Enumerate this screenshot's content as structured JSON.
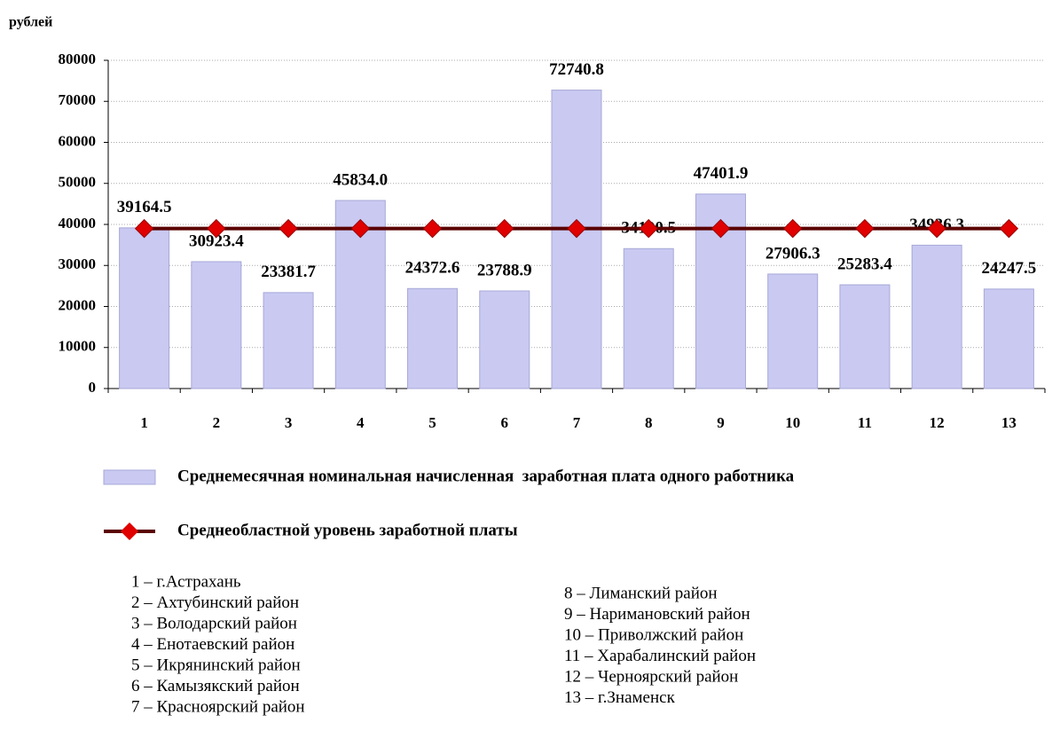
{
  "chart_data": {
    "type": "bar",
    "y_axis_label": "рублей",
    "categories": [
      "1",
      "2",
      "3",
      "4",
      "5",
      "6",
      "7",
      "8",
      "9",
      "10",
      "11",
      "12",
      "13"
    ],
    "series": [
      {
        "name": "Среднемесячная номинальная начисленная  заработная плата одного работника",
        "type": "bar",
        "color": "#c9c9f2",
        "values": [
          39164.5,
          30923.4,
          23381.7,
          45834.0,
          24372.6,
          23788.9,
          72740.8,
          34100.5,
          47401.9,
          27906.3,
          25283.4,
          34936.3,
          24247.5
        ],
        "value_labels": [
          "39164.5",
          "30923.4",
          "23381.7",
          "45834.0",
          "24372.6",
          "23788.9",
          "72740.8",
          "34100.5",
          "47401.9",
          "27906.3",
          "25283.4",
          "34936.3",
          "24247.5"
        ]
      },
      {
        "name": "Среднеобластной уровень заработной платы",
        "type": "line",
        "color": "#e00000",
        "values": [
          39000,
          39000,
          39000,
          39000,
          39000,
          39000,
          39000,
          39000,
          39000,
          39000,
          39000,
          39000,
          39000
        ]
      }
    ],
    "ylim": [
      0,
      80000
    ],
    "yticks": [
      0,
      10000,
      20000,
      30000,
      40000,
      50000,
      60000,
      70000,
      80000
    ],
    "grid": true,
    "notes": [
      "1 – г.Астрахань",
      "2 – Ахтубинский район",
      "3 – Володарский район",
      "4 – Енотаевский район",
      "5 – Икрянинский район",
      "6 – Камызякский район",
      "7 – Красноярский район",
      "8 – Лиманский район",
      "9 – Наримановский район",
      "10 – Приволжский район",
      "11 – Харабалинский район",
      "12 – Черноярский район",
      "13 – г.Знаменск"
    ]
  }
}
